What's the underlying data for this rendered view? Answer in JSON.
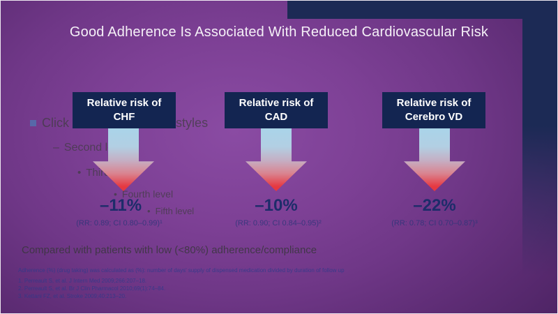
{
  "slide": {
    "title": "Good Adherence Is Associated With Reduced Cardiovascular Risk",
    "placeholder": {
      "level1": "Click to edit Master text styles",
      "level2": "Second level",
      "level3": "Third level",
      "level4": "Fourth level",
      "level5": "Fifth level",
      "bullets": {
        "l2": "–",
        "l3": "•",
        "l4": "•",
        "l5": "•"
      }
    },
    "columns": [
      {
        "box_line1": "Relative risk of",
        "box_line2": "CHF",
        "percent": "–11%",
        "rr": "(RR: 0.89; CI 0.80–0.99)¹"
      },
      {
        "box_line1": "Relative risk of",
        "box_line2": "CAD",
        "percent": "–10%",
        "rr": "(RR: 0.90; CI 0.84–0.95)²"
      },
      {
        "box_line1": "Relative risk of",
        "box_line2": "Cerebro VD",
        "percent": "–22%",
        "rr": "(RR: 0.78; CI 0.70–0.87)³"
      }
    ],
    "comparison_note": "Compared with patients with low (<80%) adherence/compliance",
    "footnote": "Adherence (%) (drug taking) was calculated as (%): number of days' supply of dispensed medication divided by duration of follow up",
    "references": [
      "1. Perreault S, et al. J Intern Med 2009;266:207–18.",
      "2. Perreault S, et al. Br J Clin Pharmacol 2010;69(1):74–84.",
      "3. Kettani FZ, et al. Stroke 2009;40:213–20."
    ],
    "colors": {
      "background_purple": "#6f3787",
      "frame_navy": "#1c2a55",
      "box_navy": "#132551",
      "arrow_blue": "#a9d4e9",
      "arrow_red": "#e63840",
      "percent_navy": "#1d2c6a",
      "title_white": "#f5f0f7"
    }
  }
}
